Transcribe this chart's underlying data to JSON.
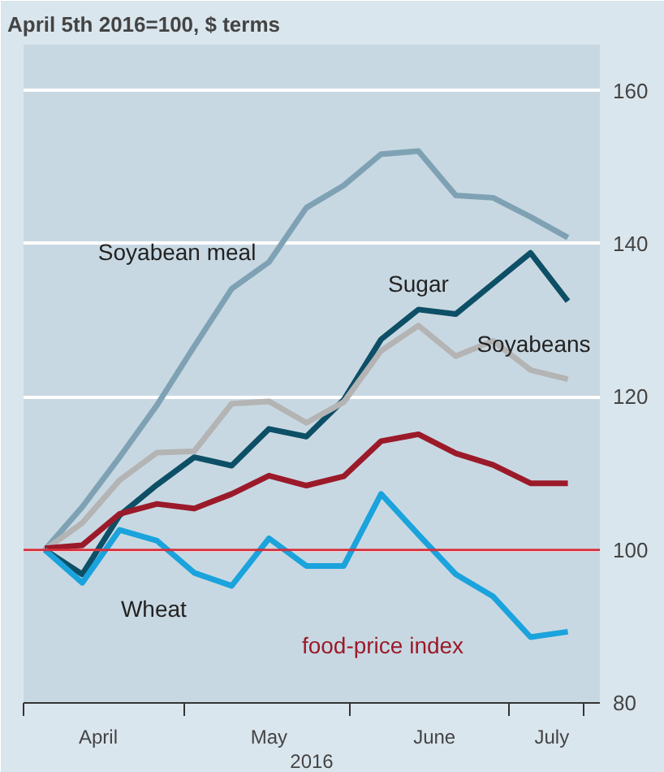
{
  "chart_data": {
    "type": "line",
    "title": "April 5th 2016=100, $ terms",
    "xlabel": "2016",
    "x": [
      "2016-04-05",
      "2016-04-12",
      "2016-04-19",
      "2016-04-26",
      "2016-05-03",
      "2016-05-10",
      "2016-05-17",
      "2016-05-24",
      "2016-05-31",
      "2016-06-07",
      "2016-06-14",
      "2016-06-21",
      "2016-06-28",
      "2016-07-05",
      "2016-07-12"
    ],
    "xlim": [
      "2016-04-01",
      "2016-07-18"
    ],
    "xticks": [
      {
        "value": "2016-04-01",
        "label": null
      },
      {
        "value": "2016-05-01",
        "label": null
      },
      {
        "value": "2016-06-01",
        "label": null
      },
      {
        "value": "2016-07-01",
        "label": null
      },
      {
        "value": "2016-07-15",
        "label": null
      },
      {
        "value": "2016-04-15",
        "label": "April"
      },
      {
        "value": "2016-05-17",
        "label": "May"
      },
      {
        "value": "2016-06-17",
        "label": "June"
      },
      {
        "value": "2016-07-09",
        "label": "July"
      }
    ],
    "ylim": [
      80,
      166
    ],
    "yticks": [
      80,
      100,
      120,
      140,
      160
    ],
    "grid": "y",
    "ref_lines": [
      {
        "axis": "y",
        "value": 100,
        "label": null,
        "color": "#d0303c"
      }
    ],
    "series": [
      {
        "name": "Soyabean meal",
        "color": "#7ea2b4",
        "values": [
          100,
          105.6,
          112.1,
          118.9,
          126.6,
          134.1,
          137.6,
          144.7,
          147.6,
          151.7,
          152.1,
          146.3,
          146.0,
          143.5,
          140.8
        ]
      },
      {
        "name": "Sugar",
        "color": "#0d4f66",
        "values": [
          100,
          96.8,
          104.5,
          108.5,
          112.1,
          111.0,
          115.8,
          114.8,
          119.6,
          127.5,
          131.4,
          130.8,
          134.8,
          138.8,
          132.5
        ]
      },
      {
        "name": "Soyabeans",
        "color": "#b4b4b4",
        "values": [
          100,
          103.5,
          109.1,
          112.7,
          112.9,
          119.1,
          119.4,
          116.6,
          119.3,
          126.0,
          129.3,
          125.3,
          127.3,
          123.5,
          122.3
        ]
      },
      {
        "name": "food-price index",
        "color": "#9b1a2a",
        "values": [
          100.2,
          100.6,
          104.7,
          106.0,
          105.4,
          107.3,
          109.7,
          108.4,
          109.6,
          114.2,
          115.1,
          112.6,
          111.1,
          108.7,
          108.7
        ]
      },
      {
        "name": "Wheat",
        "color": "#1aa3dc",
        "values": [
          100,
          95.7,
          102.6,
          101.2,
          97.0,
          95.3,
          101.5,
          97.9,
          97.9,
          107.3,
          102.0,
          96.8,
          93.9,
          88.6,
          89.3
        ]
      }
    ]
  }
}
